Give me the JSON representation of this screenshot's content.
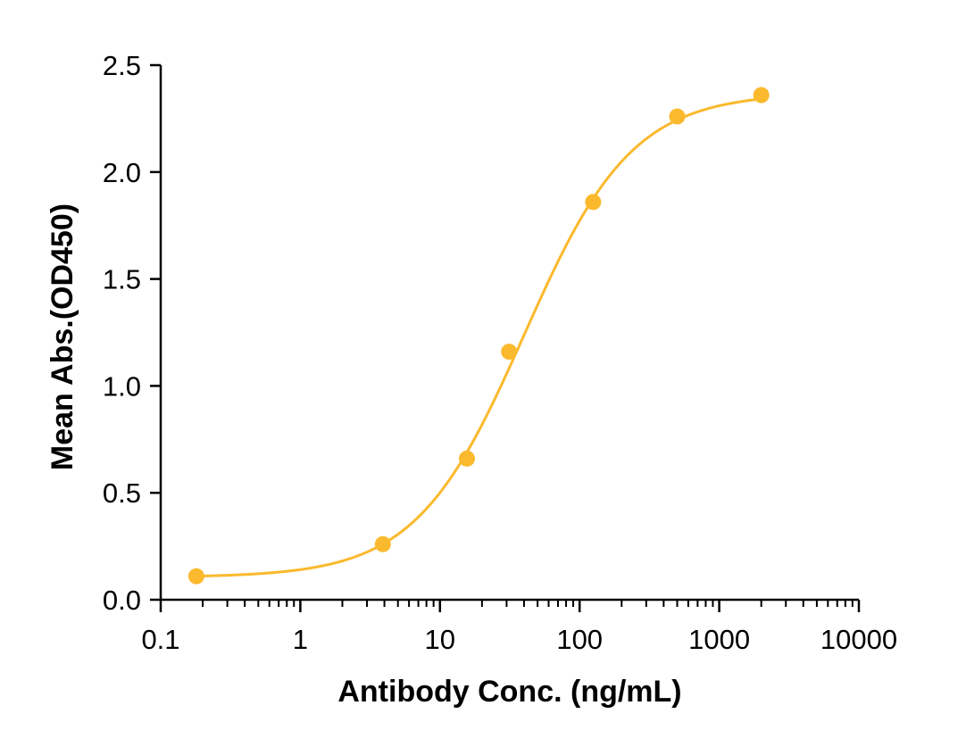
{
  "chart_data": {
    "type": "scatter",
    "title": "",
    "xlabel": "Antibody Conc. (ng/mL)",
    "ylabel": "Mean Abs.(OD450)",
    "x_scale": "log",
    "xlim": [
      0.1,
      10000
    ],
    "ylim": [
      0,
      2.5
    ],
    "x_ticks": [
      0.1,
      1,
      10,
      100,
      1000,
      10000
    ],
    "x_tick_labels": [
      "0.1",
      "1",
      "10",
      "100",
      "1000",
      "10000"
    ],
    "y_ticks": [
      0,
      0.5,
      1.0,
      1.5,
      2.0,
      2.5
    ],
    "y_tick_labels": [
      "0.0",
      "0.5",
      "1.0",
      "1.5",
      "2.0",
      "2.5"
    ],
    "grid": false,
    "legend": "none",
    "color": "#FBB92D",
    "series": [
      {
        "x": [
          0.18,
          3.9,
          15.6,
          31.25,
          125,
          500,
          2000
        ],
        "y": [
          0.11,
          0.26,
          0.66,
          1.16,
          1.86,
          2.26,
          2.36
        ],
        "fit": "four-parameter logistic"
      }
    ]
  }
}
